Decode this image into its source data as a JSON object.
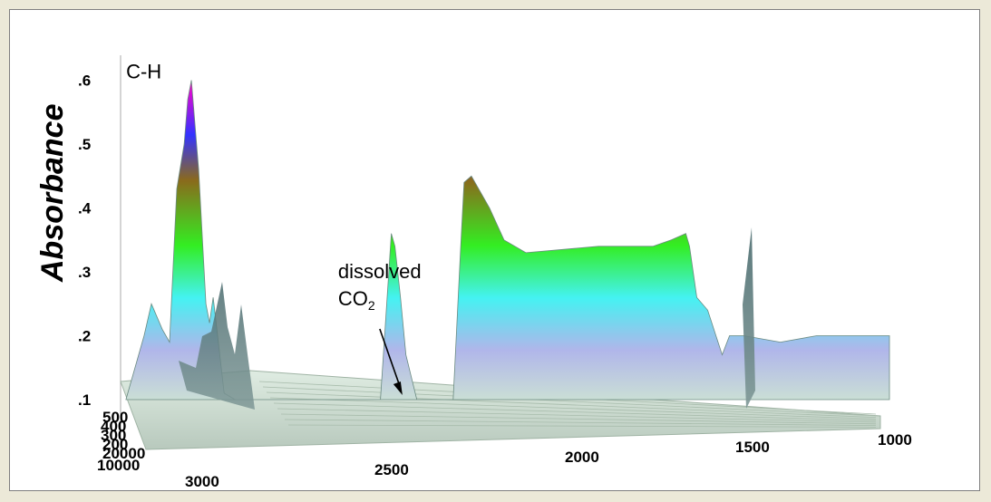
{
  "chart_data": {
    "type": "area",
    "title": "",
    "ylabel": "Absorbance",
    "y_ticks": [
      ".1",
      ".2",
      ".3",
      ".4",
      ".5",
      ".6"
    ],
    "x_ticks": [
      "3000",
      "2500",
      "2000",
      "1500",
      "1000"
    ],
    "depth_ticks": [
      "500",
      "400",
      "300",
      "200",
      "10000"
    ],
    "depth_tick_partial": "20000",
    "ylim": [
      0.1,
      0.6
    ],
    "xlim": [
      3100,
      1000
    ],
    "annotations": [
      {
        "text": "C-H",
        "x": 2900,
        "y": 0.61
      },
      {
        "text": "dissolved",
        "sub_main": "CO",
        "sub_script": "2",
        "x": 2342,
        "y": 0.11
      }
    ],
    "series": [
      {
        "x": [
          3100,
          3050,
          3030,
          3000,
          2980,
          2960,
          2940,
          2930,
          2920,
          2900,
          2880,
          2870,
          2860,
          2850,
          2830,
          2800,
          2700,
          2600,
          2500,
          2400,
          2370,
          2360,
          2345,
          2330,
          2300,
          2200,
          2180,
          2170,
          2150,
          2100,
          2060,
          2000,
          1800,
          1650,
          1600,
          1560,
          1550,
          1530,
          1500,
          1460,
          1440,
          1400,
          1300,
          1200,
          1100,
          1000
        ],
        "y": [
          0.1,
          0.2,
          0.25,
          0.21,
          0.19,
          0.43,
          0.5,
          0.57,
          0.6,
          0.46,
          0.25,
          0.22,
          0.26,
          0.21,
          0.11,
          0.1,
          0.1,
          0.1,
          0.1,
          0.1,
          0.36,
          0.34,
          0.26,
          0.17,
          0.1,
          0.1,
          0.33,
          0.44,
          0.45,
          0.4,
          0.35,
          0.33,
          0.34,
          0.34,
          0.35,
          0.36,
          0.34,
          0.26,
          0.24,
          0.17,
          0.2,
          0.2,
          0.19,
          0.2,
          0.2,
          0.2
        ]
      }
    ]
  }
}
